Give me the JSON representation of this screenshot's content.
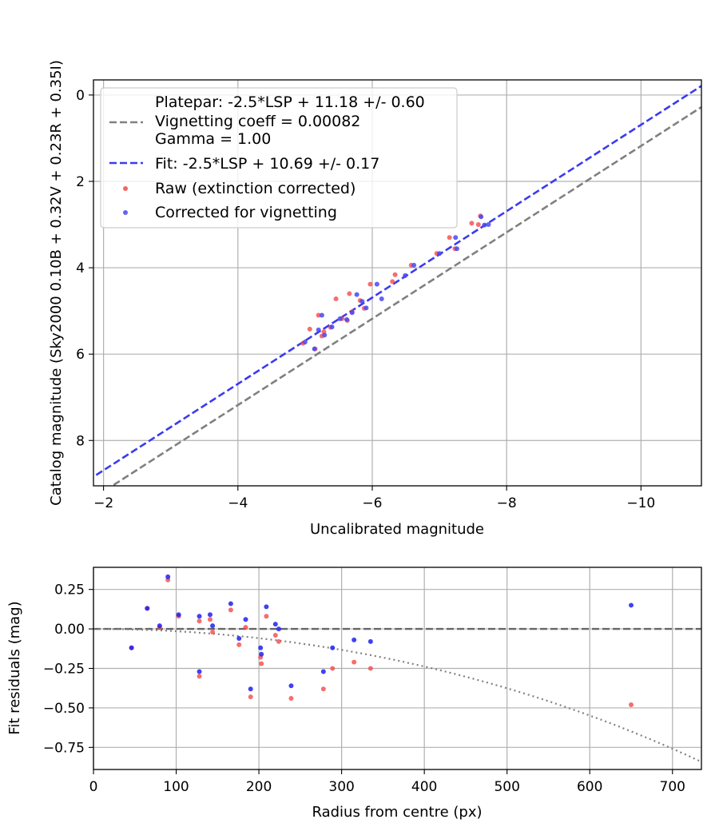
{
  "chart_data": [
    {
      "type": "scatter",
      "xlabel": "Uncalibrated magnitude",
      "ylabel": "Catalog magnitude (Sky2000 0.10B + 0.32V + 0.23R + 0.35I)",
      "xlim": [
        -1.85,
        -10.9
      ],
      "ylim": [
        9.05,
        -0.35
      ],
      "x_ticks": [
        -2,
        -4,
        -6,
        -8,
        -10
      ],
      "y_ticks": [
        0,
        2,
        4,
        6,
        8
      ],
      "x_tick_labels": [
        "−2",
        "−4",
        "−6",
        "−8",
        "−10"
      ],
      "y_tick_labels": [
        "0",
        "2",
        "4",
        "6",
        "8"
      ],
      "grid": true,
      "legend_placement": "upper left",
      "legend": {
        "platepar_lines": [
          "Platepar: -2.5*LSP + 11.18 +/- 0.60",
          "Vignetting coeff = 0.00082",
          "Gamma = 1.00"
        ],
        "fit": "Fit: -2.5*LSP + 10.69 +/- 0.17",
        "raw": "Raw (extinction corrected)",
        "corrected": "Corrected for vignetting"
      },
      "lines": [
        {
          "name": "Platepar",
          "offset": 11.18,
          "slope": 1.0,
          "color": "#808080",
          "style": "dashed"
        },
        {
          "name": "Fit",
          "offset": 10.69,
          "slope": 1.0,
          "color": "#3a3af0",
          "style": "dashed"
        }
      ],
      "series": [
        {
          "name": "Raw (extinction corrected)",
          "color": "#f24a4a",
          "points": [
            [
              -4.97,
              5.75
            ],
            [
              -5.07,
              5.42
            ],
            [
              -5.15,
              5.88
            ],
            [
              -5.2,
              5.1
            ],
            [
              -5.25,
              5.58
            ],
            [
              -5.28,
              5.48
            ],
            [
              -5.38,
              5.38
            ],
            [
              -5.46,
              4.72
            ],
            [
              -5.55,
              5.18
            ],
            [
              -5.63,
              5.22
            ],
            [
              -5.66,
              4.6
            ],
            [
              -5.7,
              5.02
            ],
            [
              -5.82,
              4.76
            ],
            [
              -5.88,
              4.94
            ],
            [
              -5.97,
              4.38
            ],
            [
              -6.3,
              4.32
            ],
            [
              -6.34,
              4.16
            ],
            [
              -6.58,
              3.94
            ],
            [
              -6.96,
              3.67
            ],
            [
              -7.15,
              3.3
            ],
            [
              -7.23,
              3.56
            ],
            [
              -7.48,
              2.97
            ],
            [
              -7.58,
              3.0
            ],
            [
              -7.61,
              2.8
            ]
          ]
        },
        {
          "name": "Corrected for vignetting",
          "color": "#4848f2",
          "points": [
            [
              -5.0,
              5.72
            ],
            [
              -5.14,
              5.88
            ],
            [
              -5.2,
              5.44
            ],
            [
              -5.25,
              5.1
            ],
            [
              -5.29,
              5.56
            ],
            [
              -5.4,
              5.37
            ],
            [
              -5.52,
              5.18
            ],
            [
              -5.62,
              5.2
            ],
            [
              -5.7,
              5.04
            ],
            [
              -5.77,
              4.62
            ],
            [
              -5.85,
              4.78
            ],
            [
              -5.91,
              4.93
            ],
            [
              -6.07,
              4.38
            ],
            [
              -6.14,
              4.72
            ],
            [
              -6.49,
              4.18
            ],
            [
              -6.62,
              3.94
            ],
            [
              -7.0,
              3.67
            ],
            [
              -7.24,
              3.3
            ],
            [
              -7.26,
              3.56
            ],
            [
              -7.62,
              2.82
            ],
            [
              -7.67,
              3.01
            ],
            [
              -7.73,
              3.0
            ]
          ]
        }
      ]
    },
    {
      "type": "scatter",
      "xlabel": "Radius from centre (px)",
      "ylabel": "Fit residuals (mag)",
      "xlim": [
        0,
        735
      ],
      "ylim": [
        -0.89,
        0.39
      ],
      "x_ticks": [
        0,
        100,
        200,
        300,
        400,
        500,
        600,
        700
      ],
      "y_ticks": [
        0.25,
        0.0,
        -0.25,
        -0.5,
        -0.75
      ],
      "x_tick_labels": [
        "0",
        "100",
        "200",
        "300",
        "400",
        "500",
        "600",
        "700"
      ],
      "y_tick_labels": [
        "0.25",
        "0.00",
        "−0.25",
        "−0.50",
        "−0.75"
      ],
      "grid": true,
      "reference_line": {
        "y": 0,
        "color": "#666666",
        "style": "dashed"
      },
      "vignetting_curve": {
        "coeff": 0.00082,
        "color": "#808080",
        "style": "dotted"
      },
      "series": [
        {
          "name": "Raw (extinction corrected)",
          "color": "#f24a4a",
          "points": [
            [
              46,
              -0.12
            ],
            [
              65,
              0.13
            ],
            [
              80,
              0.01
            ],
            [
              90,
              0.31
            ],
            [
              103,
              0.08
            ],
            [
              128,
              0.05
            ],
            [
              128,
              -0.3
            ],
            [
              141,
              0.06
            ],
            [
              144,
              -0.02
            ],
            [
              166,
              0.12
            ],
            [
              176,
              -0.1
            ],
            [
              184,
              0.01
            ],
            [
              190,
              -0.43
            ],
            [
              202,
              -0.18
            ],
            [
              203,
              -0.22
            ],
            [
              209,
              0.08
            ],
            [
              220,
              -0.04
            ],
            [
              224,
              -0.08
            ],
            [
              239,
              -0.44
            ],
            [
              278,
              -0.38
            ],
            [
              289,
              -0.25
            ],
            [
              315,
              -0.21
            ],
            [
              335,
              -0.25
            ],
            [
              650,
              -0.48
            ]
          ]
        },
        {
          "name": "Corrected for vignetting",
          "color": "#2020f0",
          "points": [
            [
              46,
              -0.12
            ],
            [
              65,
              0.13
            ],
            [
              80,
              0.02
            ],
            [
              90,
              0.33
            ],
            [
              103,
              0.09
            ],
            [
              128,
              0.08
            ],
            [
              128,
              -0.27
            ],
            [
              141,
              0.09
            ],
            [
              144,
              0.02
            ],
            [
              166,
              0.16
            ],
            [
              176,
              -0.06
            ],
            [
              184,
              0.06
            ],
            [
              190,
              -0.38
            ],
            [
              202,
              -0.12
            ],
            [
              203,
              -0.16
            ],
            [
              209,
              0.14
            ],
            [
              220,
              0.03
            ],
            [
              224,
              0.0
            ],
            [
              239,
              -0.36
            ],
            [
              278,
              -0.27
            ],
            [
              289,
              -0.12
            ],
            [
              315,
              -0.07
            ],
            [
              335,
              -0.08
            ],
            [
              650,
              0.15
            ]
          ]
        }
      ]
    }
  ]
}
